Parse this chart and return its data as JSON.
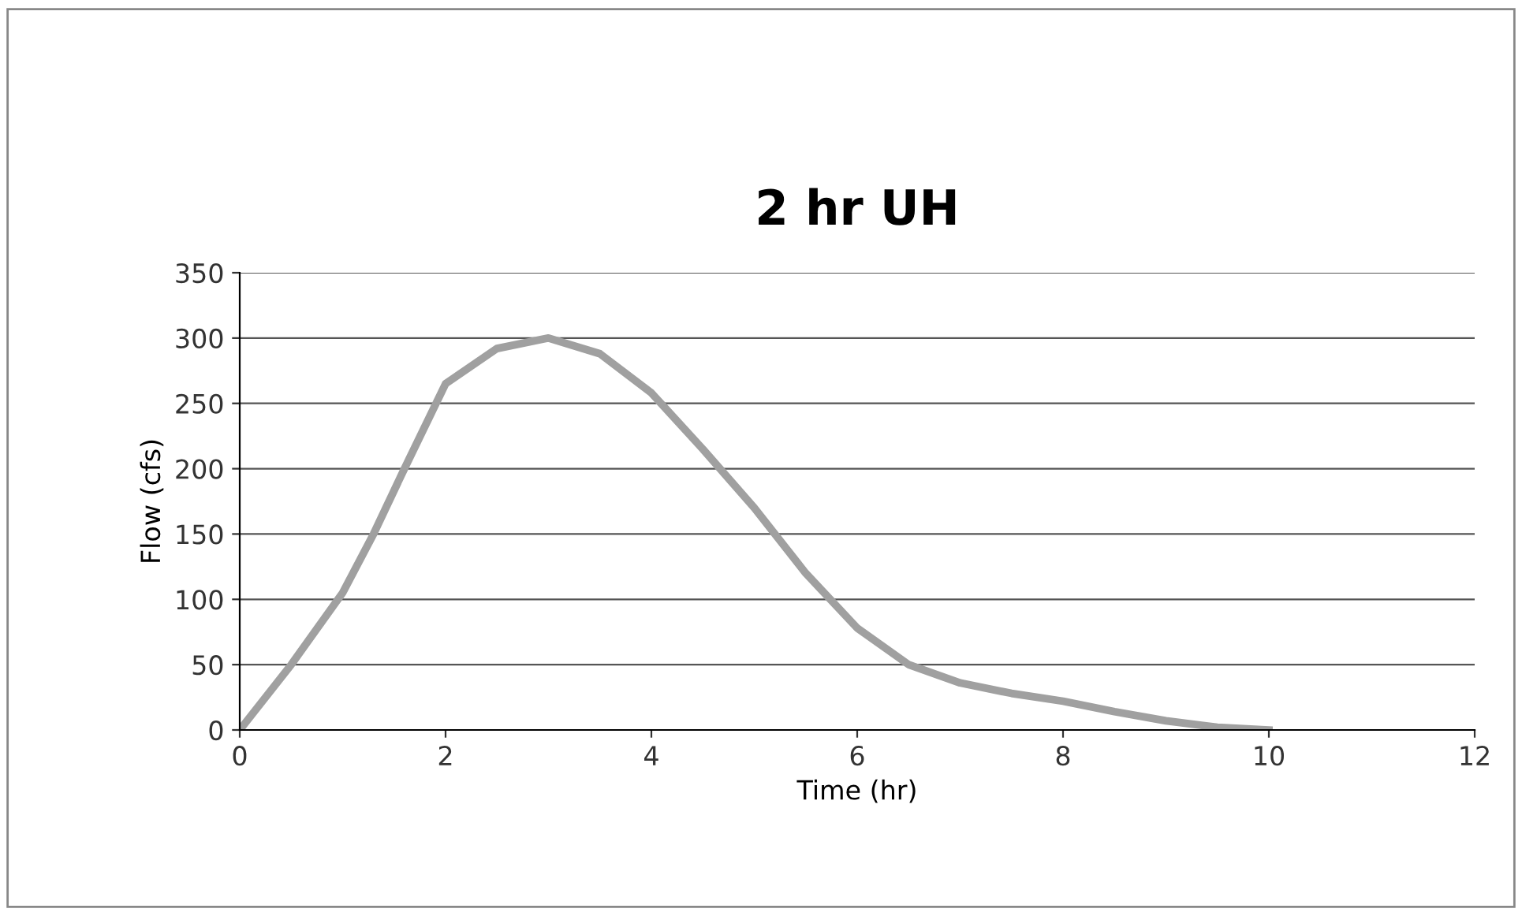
{
  "chart_data": {
    "type": "line",
    "title": "2 hr UH",
    "xlabel": "Time (hr)",
    "ylabel": "Flow (cfs)",
    "x": [
      0,
      0.5,
      1,
      1.3,
      1.6,
      2,
      2.5,
      3,
      3.5,
      4,
      4.5,
      5,
      5.5,
      6,
      6.5,
      7,
      7.5,
      8,
      8.5,
      9,
      9.5,
      10
    ],
    "series": [
      {
        "color": "#a0a0a0",
        "values": [
          0,
          50,
          105,
          150,
          200,
          265,
          292,
          300,
          288,
          258,
          215,
          170,
          120,
          78,
          50,
          36,
          28,
          22,
          14,
          7,
          2,
          0
        ]
      }
    ],
    "xlim": [
      0,
      12
    ],
    "xticks": [
      0,
      2,
      4,
      6,
      8,
      10,
      12
    ],
    "ylim": [
      0,
      350
    ],
    "yticks": [
      0,
      50,
      100,
      150,
      200,
      250,
      300,
      350
    ],
    "grid": "y",
    "legend": false,
    "marker": "none",
    "line_style": "solid"
  }
}
